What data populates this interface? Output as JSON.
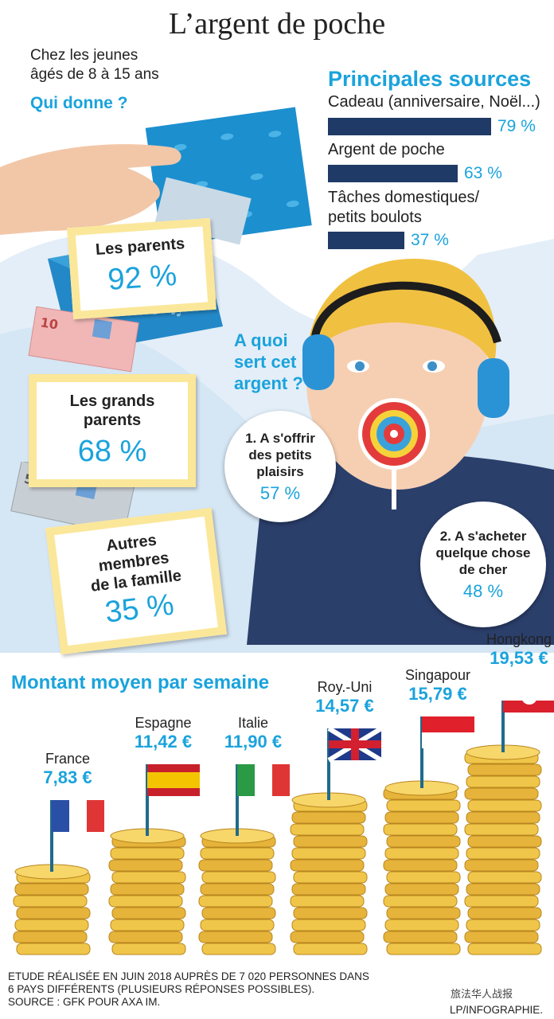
{
  "title": "L’argent de poche",
  "intro": {
    "line1": "Chez les jeunes",
    "line2": "âgés de 8 à 15 ans"
  },
  "qui_donne": "Qui donne ?",
  "givers": [
    {
      "label_lines": [
        "Les parents"
      ],
      "pct": "92 %",
      "value": 92
    },
    {
      "label_lines": [
        "Les grands",
        "parents"
      ],
      "pct": "68 %",
      "value": 68
    },
    {
      "label_lines": [
        "Autres",
        "membres",
        "de la famille"
      ],
      "pct": "35 %",
      "value": 35
    }
  ],
  "sources": {
    "title": "Principales sources",
    "items": [
      {
        "label_lines": [
          "Cadeau (anniversaire, Noël...)"
        ],
        "pct": "79 %",
        "value": 79
      },
      {
        "label_lines": [
          "Argent de poche"
        ],
        "pct": "63 %",
        "value": 63
      },
      {
        "label_lines": [
          "Tâches domestiques/",
          "petits boulots"
        ],
        "pct": "37 %",
        "value": 37
      }
    ]
  },
  "usage": {
    "question_lines": [
      "A quoi",
      "sert cet",
      "argent ?"
    ],
    "items": [
      {
        "label_lines": [
          "1. A s'offrir",
          "des petits",
          "plaisirs"
        ],
        "pct": "57 %",
        "value": 57
      },
      {
        "label_lines": [
          "2. A s'acheter",
          "quelque chose",
          "de cher"
        ],
        "pct": "48 %",
        "value": 48
      }
    ]
  },
  "chart_data": {
    "type": "bar",
    "title": "Montant moyen par semaine",
    "categories": [
      "France",
      "Espagne",
      "Italie",
      "Roy.-Uni",
      "Singapour",
      "Hongkong"
    ],
    "values": [
      7.83,
      11.42,
      11.9,
      14.57,
      15.79,
      19.53
    ],
    "value_labels": [
      "7,83 €",
      "11,42 €",
      "11,90 €",
      "14,57 €",
      "15,79 €",
      "19,53 €"
    ]
  },
  "footer": {
    "line1": "ETUDE RÉALISÉE EN JUIN 2018 AUPRÈS DE 7 020 PERSONNES DANS",
    "line2": "6 PAYS DIFFÉRENTS (PLUSIEURS RÉPONSES POSSIBLES).",
    "line3": "SOURCE : GFK POUR AXA IM."
  },
  "credit": "LP/INFOGRAPHIE.",
  "watermark": "旅法华人战报",
  "colors": {
    "accent": "#1aa3dc",
    "navy": "#1f3a66",
    "gold": "#e6b43a",
    "card_border": "#fbe79a"
  }
}
